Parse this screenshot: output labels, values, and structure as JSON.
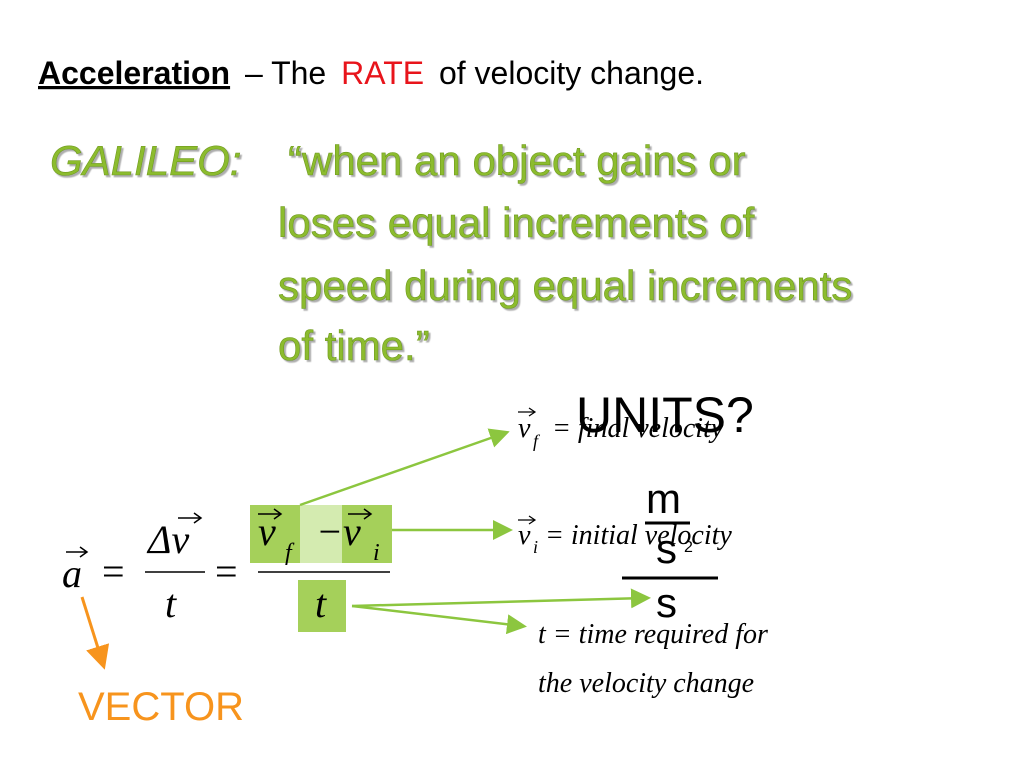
{
  "title": {
    "term": "Acceleration",
    "dash": "– The",
    "rate": "RATE",
    "rest": "of velocity change."
  },
  "quote": {
    "speaker": "GALILEO:",
    "lines": [
      "“when an object gains or",
      "loses equal increments of",
      "speed during equal increments",
      "of time.”"
    ]
  },
  "equation": {
    "a": "a",
    "eq1": "=",
    "delta_v": "Δv",
    "t": "t",
    "eq2": "=",
    "vf": "v",
    "vf_sub": "f",
    "minus_vi": "−v",
    "vi_sub": "i",
    "t2": "t"
  },
  "definitions": [
    {
      "symbol": "v",
      "sub": "f",
      "text": "= final velocity"
    },
    {
      "symbol": "v",
      "sub": "i",
      "text": "= initial velocity"
    },
    {
      "lines": [
        "t = time required for",
        "the velocity change"
      ]
    }
  ],
  "units": {
    "label": "UNITS?",
    "numerator": "m",
    "denominator": "s",
    "exponent": "2",
    "outer_denominator": "s"
  },
  "vector_label": "VECTOR"
}
